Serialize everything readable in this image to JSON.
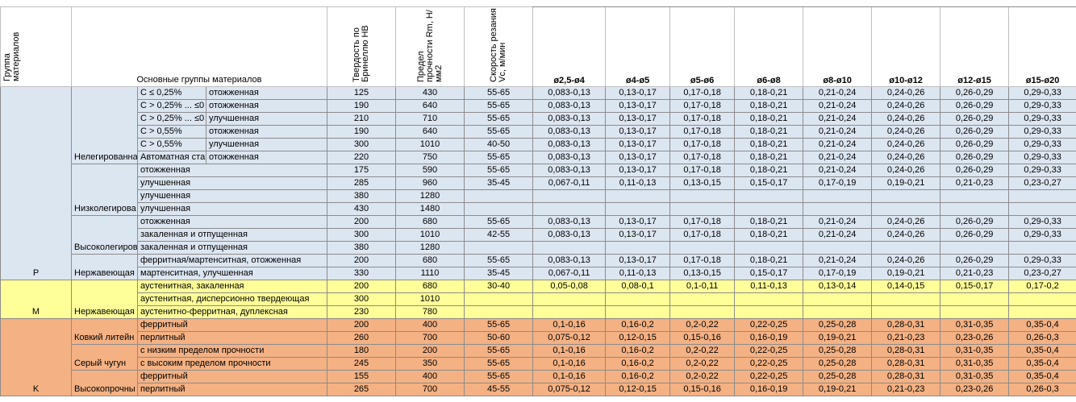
{
  "header": {
    "group": "Группа материалов",
    "main": "Основные группы материалов",
    "hb": "Твердость по Бринеллю HB",
    "rm": "Предел прочности Rm, Н/мм2",
    "vc": "Скорость резания Vc, м/мин",
    "diameters": [
      "ø2,5-ø4",
      "ø4-ø5",
      "ø5-ø6",
      "ø6-ø8",
      "ø8-ø10",
      "ø10-ø12",
      "ø12-ø15",
      "ø15-ø20"
    ]
  },
  "groups": [
    {
      "label": "P",
      "subgroups": [
        {
          "label": "Нелегированна",
          "rows": [
            {
              "condition": "C ≤ 0,25%",
              "state": "отожженная",
              "hb": 125,
              "rm": 430,
              "vc": "55-65",
              "feeds": [
                "0,083-0,13",
                "0,13-0,17",
                "0,17-0,18",
                "0,18-0,21",
                "0,21-0,24",
                "0,24-0,26",
                "0,26-0,29",
                "0,29-0,33"
              ]
            },
            {
              "condition": "C > 0,25% ... ≤0",
              "state": "отожженная",
              "hb": 190,
              "rm": 640,
              "vc": "55-65",
              "feeds": [
                "0,083-0,13",
                "0,13-0,17",
                "0,17-0,18",
                "0,18-0,21",
                "0,21-0,24",
                "0,24-0,26",
                "0,26-0,29",
                "0,29-0,33"
              ]
            },
            {
              "condition": "C > 0,25% ... ≤0",
              "state": "улучшенная",
              "hb": 210,
              "rm": 710,
              "vc": "55-65",
              "feeds": [
                "0,083-0,13",
                "0,13-0,17",
                "0,17-0,18",
                "0,18-0,21",
                "0,21-0,24",
                "0,24-0,26",
                "0,26-0,29",
                "0,29-0,33"
              ]
            },
            {
              "condition": "C > 0,55%",
              "state": "отожженная",
              "hb": 190,
              "rm": 640,
              "vc": "55-65",
              "feeds": [
                "0,083-0,13",
                "0,13-0,17",
                "0,17-0,18",
                "0,18-0,21",
                "0,21-0,24",
                "0,24-0,26",
                "0,26-0,29",
                "0,29-0,33"
              ]
            },
            {
              "condition": "C > 0,55%",
              "state": "улучшенная",
              "hb": 300,
              "rm": 1010,
              "vc": "40-50",
              "feeds": [
                "0,083-0,13",
                "0,13-0,17",
                "0,17-0,18",
                "0,18-0,21",
                "0,21-0,24",
                "0,24-0,26",
                "0,26-0,29",
                "0,29-0,33"
              ]
            },
            {
              "condition": "Автоматная ста",
              "state": "отожженная",
              "hb": 220,
              "rm": 750,
              "vc": "55-65",
              "feeds": [
                "0,083-0,13",
                "0,13-0,17",
                "0,17-0,18",
                "0,18-0,21",
                "0,21-0,24",
                "0,24-0,26",
                "0,26-0,29",
                "0,29-0,33"
              ]
            }
          ]
        },
        {
          "label": "Низколегирова",
          "rows": [
            {
              "condition": "отожженная",
              "hb": 175,
              "rm": 590,
              "vc": "55-65",
              "feeds": [
                "0,083-0,13",
                "0,13-0,17",
                "0,17-0,18",
                "0,18-0,21",
                "0,21-0,24",
                "0,24-0,26",
                "0,26-0,29",
                "0,29-0,33"
              ]
            },
            {
              "condition": "улучшенная",
              "hb": 285,
              "rm": 960,
              "vc": "35-45",
              "feeds": [
                "0,067-0,11",
                "0,11-0,13",
                "0,13-0,15",
                "0,15-0,17",
                "0,17-0,19",
                "0,19-0,21",
                "0,21-0,23",
                "0,23-0,27"
              ]
            },
            {
              "condition": "улучшенная",
              "hb": 380,
              "rm": 1280
            },
            {
              "condition": "улучшенная",
              "hb": 430,
              "rm": 1480
            }
          ]
        },
        {
          "label": "Высоколегиров",
          "rows": [
            {
              "condition": "отожженная",
              "hb": 200,
              "rm": 680,
              "vc": "55-65",
              "feeds": [
                "0,083-0,13",
                "0,13-0,17",
                "0,17-0,18",
                "0,18-0,21",
                "0,21-0,24",
                "0,24-0,26",
                "0,26-0,29",
                "0,29-0,33"
              ]
            },
            {
              "condition": "закаленная и отпущенная",
              "hb": 300,
              "rm": 1010,
              "vc": "42-55",
              "feeds": [
                "0,083-0,13",
                "0,13-0,17",
                "0,17-0,18",
                "0,18-0,21",
                "0,21-0,24",
                "0,24-0,26",
                "0,26-0,29",
                "0,29-0,33"
              ]
            },
            {
              "condition": "закаленная и отпущенная",
              "hb": 380,
              "rm": 1280
            }
          ]
        },
        {
          "label": "Нержавеющая",
          "rows": [
            {
              "condition": "ферритная/мартенситная, отожженная",
              "hb": 200,
              "rm": 680,
              "vc": "55-65",
              "feeds": [
                "0,083-0,13",
                "0,13-0,17",
                "0,17-0,18",
                "0,18-0,21",
                "0,21-0,24",
                "0,24-0,26",
                "0,26-0,29",
                "0,29-0,33"
              ]
            },
            {
              "condition": "мартенситная, улучшенная",
              "hb": 330,
              "rm": 1110,
              "vc": "35-45",
              "feeds": [
                "0,067-0,11",
                "0,11-0,13",
                "0,13-0,15",
                "0,15-0,17",
                "0,17-0,19",
                "0,19-0,21",
                "0,21-0,23",
                "0,23-0,27"
              ]
            }
          ]
        }
      ]
    },
    {
      "label": "M",
      "subgroups": [
        {
          "label": "Нержавеющая",
          "rows": [
            {
              "condition": "аустенитная, закаленная",
              "hb": 200,
              "rm": 680,
              "vc": "30-40",
              "feeds": [
                "0,05-0,08",
                "0,08-0,1",
                "0,1-0,11",
                "0,11-0,13",
                "0,13-0,14",
                "0,14-0,15",
                "0,15-0,17",
                "0,17-0,2"
              ]
            },
            {
              "condition": "аустенитная, дисперсионно твердеющая",
              "hb": 300,
              "rm": 1010
            },
            {
              "condition": "аустенитно-ферритная, дуплексная",
              "hb": 230,
              "rm": 780
            }
          ]
        }
      ]
    },
    {
      "label": "K",
      "subgroups": [
        {
          "label": "Ковкий литейн",
          "rows": [
            {
              "condition": "ферритный",
              "hb": 200,
              "rm": 400,
              "vc": "55-65",
              "feeds": [
                "0,1-0,16",
                "0,16-0,2",
                "0,2-0,22",
                "0,22-0,25",
                "0,25-0,28",
                "0,28-0,31",
                "0,31-0,35",
                "0,35-0,4"
              ]
            },
            {
              "condition": "перлитный",
              "hb": 260,
              "rm": 700,
              "vc": "50-60",
              "feeds": [
                "0,075-0,12",
                "0,12-0,15",
                "0,15-0,16",
                "0,16-0,19",
                "0,19-0,21",
                "0,21-0,23",
                "0,23-0,26",
                "0,26-0,3"
              ]
            }
          ]
        },
        {
          "label": "Серый чугун",
          "rows": [
            {
              "condition": "с низким пределом прочности",
              "hb": 180,
              "rm": 200,
              "vc": "55-65",
              "feeds": [
                "0,1-0,16",
                "0,16-0,2",
                "0,2-0,22",
                "0,22-0,25",
                "0,25-0,28",
                "0,28-0,31",
                "0,31-0,35",
                "0,35-0,4"
              ]
            },
            {
              "condition": "с высоким пределом прочности",
              "hb": 245,
              "rm": 350,
              "vc": "55-65",
              "feeds": [
                "0,1-0,16",
                "0,16-0,2",
                "0,2-0,22",
                "0,22-0,25",
                "0,25-0,28",
                "0,28-0,31",
                "0,31-0,35",
                "0,35-0,4"
              ]
            }
          ]
        },
        {
          "label": "Высокопрочны",
          "rows": [
            {
              "condition": "ферритный",
              "hb": 155,
              "rm": 400,
              "vc": "55-65",
              "feeds": [
                "0,1-0,16",
                "0,16-0,2",
                "0,2-0,22",
                "0,22-0,25",
                "0,25-0,28",
                "0,28-0,31",
                "0,31-0,35",
                "0,35-0,4"
              ]
            },
            {
              "condition": "перлитный",
              "hb": 265,
              "rm": 700,
              "vc": "45-55",
              "feeds": [
                "0,075-0,12",
                "0,12-0,15",
                "0,15-0,16",
                "0,16-0,19",
                "0,19-0,21",
                "0,21-0,23",
                "0,23-0,26",
                "0,26-0,3"
              ]
            }
          ]
        }
      ]
    }
  ]
}
